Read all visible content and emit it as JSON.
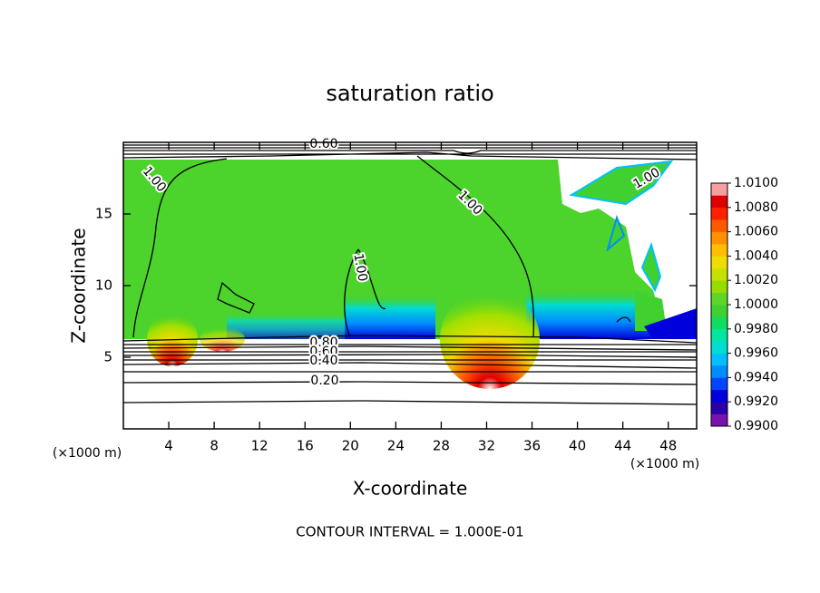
{
  "chart_data": {
    "type": "contour",
    "title": "saturation ratio",
    "x_label": "X-coordinate",
    "y_label": "Z-coordinate",
    "x_unit_label": "(×1000 m)",
    "xlim": [
      0,
      50.5
    ],
    "xticks": [
      4,
      8,
      12,
      16,
      20,
      24,
      28,
      32,
      36,
      40,
      44,
      48
    ],
    "ylim": [
      0,
      20
    ],
    "yticks": [
      5,
      10,
      15
    ],
    "colorbar": {
      "lim": [
        0.99,
        1.01
      ],
      "ticks": [
        {
          "value": 1.01,
          "label": "1.0100"
        },
        {
          "value": 1.008,
          "label": "1.0080"
        },
        {
          "value": 1.006,
          "label": "1.0060"
        },
        {
          "value": 1.004,
          "label": "1.0040"
        },
        {
          "value": 1.002,
          "label": "1.0020"
        },
        {
          "value": 1.0,
          "label": "1.0000"
        },
        {
          "value": 0.998,
          "label": "0.9980"
        },
        {
          "value": 0.996,
          "label": "0.9960"
        },
        {
          "value": 0.994,
          "label": "0.9940"
        },
        {
          "value": 0.992,
          "label": "0.9920"
        },
        {
          "value": 0.99,
          "label": "0.9900"
        }
      ],
      "colors": [
        "#7a12b0",
        "#2a00a8",
        "#0000dc",
        "#0046ff",
        "#008cff",
        "#00c0ff",
        "#00dcd2",
        "#00e6a0",
        "#10dc60",
        "#40d030",
        "#5ed628",
        "#96dc00",
        "#c8e000",
        "#f0dc00",
        "#ffbe00",
        "#ff9000",
        "#ff5a00",
        "#ff2000",
        "#dc0000",
        "#f5a0a0"
      ]
    },
    "contour_labels": [
      "1.00",
      "1.00",
      "1.00",
      "1.00",
      "0.80",
      "0.60",
      "0.40",
      "0.20",
      "0.60"
    ],
    "footer": "CONTOUR INTERVAL = 1.000E-01"
  }
}
